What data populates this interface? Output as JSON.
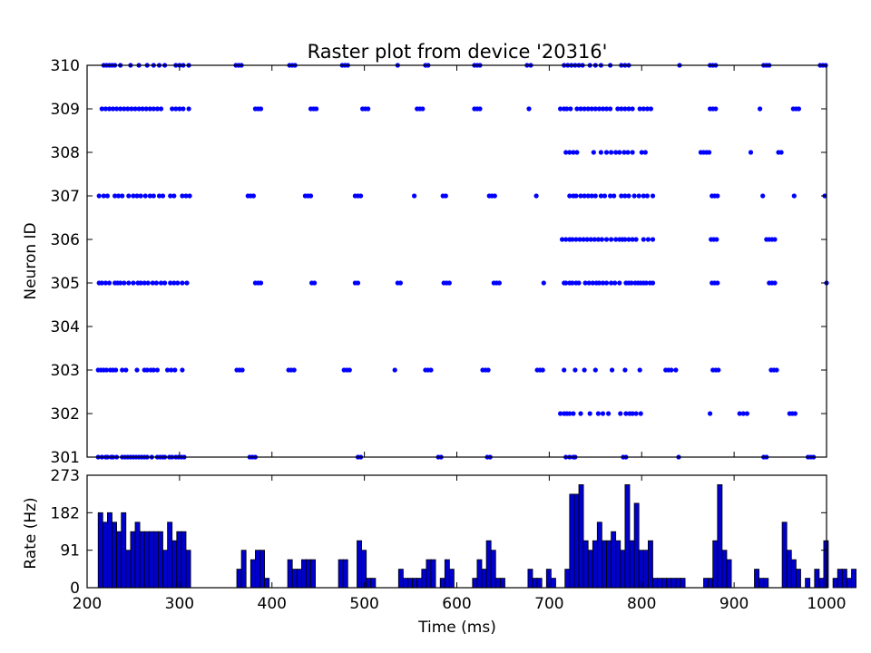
{
  "chart_data": [
    {
      "type": "scatter",
      "title": "Raster plot from device '20316'",
      "xlabel": "",
      "ylabel": "Neuron ID",
      "xlim": [
        200,
        1000
      ],
      "ylim": [
        301,
        310
      ],
      "yticks": [
        "301",
        "302",
        "303",
        "304",
        "305",
        "306",
        "307",
        "308",
        "309",
        "310"
      ],
      "marker_color": "#0000ff",
      "series": [
        {
          "neuron": 301,
          "spikes": [
            212,
            216,
            220,
            222,
            226,
            228,
            232,
            238,
            241,
            244,
            247,
            250,
            253,
            256,
            259,
            262,
            265,
            270,
            276,
            279,
            282,
            284,
            289,
            292,
            296,
            299,
            302,
            305,
            376,
            379,
            382,
            493,
            496,
            580,
            583,
            633,
            636,
            718,
            722,
            726,
            728,
            780,
            783,
            840,
            932,
            935,
            980,
            983,
            986
          ]
        },
        {
          "neuron": 302,
          "spikes": [
            712,
            716,
            719,
            722,
            726,
            734,
            744,
            753,
            758,
            764,
            777,
            783,
            787,
            790,
            794,
            799,
            874,
            906,
            910,
            914,
            960,
            963,
            966
          ]
        },
        {
          "neuron": 303,
          "spikes": [
            212,
            215,
            218,
            221,
            225,
            228,
            231,
            238,
            242,
            254,
            262,
            265,
            269,
            272,
            276,
            287,
            291,
            295,
            303,
            362,
            365,
            368,
            418,
            421,
            424,
            478,
            481,
            484,
            533,
            566,
            569,
            572,
            628,
            631,
            634,
            687,
            690,
            693,
            716,
            728,
            738,
            750,
            768,
            782,
            798,
            826,
            829,
            832,
            837,
            877,
            880,
            883,
            940,
            943,
            946
          ]
        },
        {
          "neuron": 304,
          "spikes": []
        },
        {
          "neuron": 305,
          "spikes": [
            213,
            216,
            220,
            224,
            230,
            233,
            236,
            240,
            245,
            250,
            255,
            258,
            262,
            266,
            271,
            275,
            280,
            284,
            290,
            294,
            298,
            303,
            308,
            382,
            385,
            388,
            443,
            446,
            490,
            493,
            536,
            539,
            586,
            589,
            592,
            640,
            643,
            646,
            694,
            716,
            718,
            722,
            725,
            729,
            732,
            739,
            743,
            747,
            751,
            754,
            758,
            762,
            767,
            771,
            776,
            783,
            786,
            789,
            793,
            796,
            799,
            802,
            805,
            809,
            812,
            876,
            879,
            882,
            938,
            941,
            944,
            1000
          ]
        },
        {
          "neuron": 306,
          "spikes": [
            714,
            718,
            722,
            725,
            729,
            733,
            737,
            741,
            745,
            749,
            753,
            757,
            762,
            767,
            772,
            776,
            779,
            782,
            786,
            790,
            794,
            802,
            807,
            812,
            875,
            878,
            881,
            935,
            938,
            941,
            944
          ]
        },
        {
          "neuron": 307,
          "spikes": [
            213,
            218,
            222,
            230,
            234,
            238,
            245,
            250,
            254,
            258,
            263,
            268,
            272,
            278,
            282,
            290,
            294,
            303,
            307,
            311,
            374,
            377,
            380,
            436,
            439,
            442,
            490,
            493,
            496,
            554,
            585,
            588,
            635,
            638,
            641,
            686,
            722,
            726,
            729,
            734,
            738,
            742,
            746,
            750,
            756,
            760,
            766,
            770,
            778,
            782,
            786,
            792,
            797,
            802,
            806,
            812,
            876,
            879,
            882,
            931,
            965,
            998
          ]
        },
        {
          "neuron": 308,
          "spikes": [
            718,
            722,
            726,
            730,
            748,
            756,
            762,
            767,
            772,
            776,
            781,
            785,
            790,
            800,
            804,
            864,
            867,
            870,
            873,
            918,
            948,
            951
          ]
        },
        {
          "neuron": 309,
          "spikes": [
            216,
            220,
            224,
            228,
            232,
            236,
            240,
            244,
            248,
            252,
            256,
            260,
            264,
            268,
            272,
            276,
            280,
            292,
            296,
            300,
            304,
            310,
            382,
            385,
            388,
            442,
            445,
            448,
            498,
            501,
            504,
            557,
            560,
            563,
            619,
            622,
            625,
            678,
            712,
            716,
            719,
            723,
            730,
            734,
            738,
            742,
            746,
            750,
            754,
            758,
            762,
            766,
            774,
            778,
            782,
            786,
            790,
            798,
            802,
            806,
            810,
            874,
            877,
            880,
            928,
            964,
            967,
            970
          ]
        },
        {
          "neuron": 310,
          "spikes": [
            218,
            221,
            224,
            227,
            230,
            236,
            247,
            256,
            265,
            272,
            278,
            284,
            296,
            300,
            304,
            310,
            361,
            364,
            367,
            419,
            422,
            425,
            476,
            479,
            482,
            536,
            566,
            569,
            619,
            622,
            625,
            676,
            680,
            716,
            720,
            724,
            728,
            732,
            736,
            744,
            750,
            756,
            766,
            778,
            782,
            786,
            841,
            874,
            877,
            880,
            932,
            935,
            938,
            993,
            996,
            999
          ]
        }
      ]
    },
    {
      "type": "bar",
      "title": "",
      "xlabel": "Time (ms)",
      "ylabel": "Rate (Hz)",
      "xlim": [
        200,
        1000
      ],
      "ylim": [
        0,
        273
      ],
      "yticks": [
        "0",
        "91",
        "182",
        "273"
      ],
      "xticks": [
        "200",
        "300",
        "400",
        "500",
        "600",
        "700",
        "800",
        "900",
        "1000"
      ],
      "bin_start": 212,
      "bin_width": 5,
      "bar_color": "#0000cc",
      "values": [
        182,
        159,
        182,
        159,
        136,
        182,
        91,
        136,
        159,
        136,
        136,
        136,
        136,
        136,
        91,
        159,
        114,
        136,
        136,
        91,
        0,
        0,
        0,
        0,
        0,
        0,
        0,
        0,
        0,
        0,
        45,
        91,
        0,
        68,
        91,
        91,
        23,
        0,
        0,
        0,
        0,
        68,
        45,
        45,
        68,
        68,
        68,
        0,
        0,
        0,
        0,
        0,
        68,
        68,
        0,
        0,
        114,
        91,
        23,
        23,
        0,
        0,
        0,
        0,
        0,
        45,
        23,
        23,
        23,
        23,
        45,
        68,
        68,
        0,
        23,
        68,
        45,
        0,
        0,
        0,
        0,
        23,
        68,
        45,
        114,
        91,
        23,
        23,
        0,
        0,
        0,
        0,
        0,
        45,
        23,
        23,
        0,
        45,
        23,
        0,
        0,
        45,
        227,
        227,
        250,
        114,
        91,
        114,
        159,
        114,
        114,
        136,
        114,
        91,
        250,
        114,
        205,
        91,
        91,
        114,
        23,
        23,
        23,
        23,
        23,
        23,
        23,
        0,
        0,
        0,
        0,
        23,
        23,
        114,
        250,
        91,
        68,
        0,
        0,
        0,
        0,
        0,
        45,
        23,
        23,
        0,
        0,
        0,
        159,
        91,
        68,
        45,
        0,
        23,
        0,
        45,
        23,
        114,
        0,
        23,
        45,
        45,
        23,
        45
      ]
    }
  ]
}
